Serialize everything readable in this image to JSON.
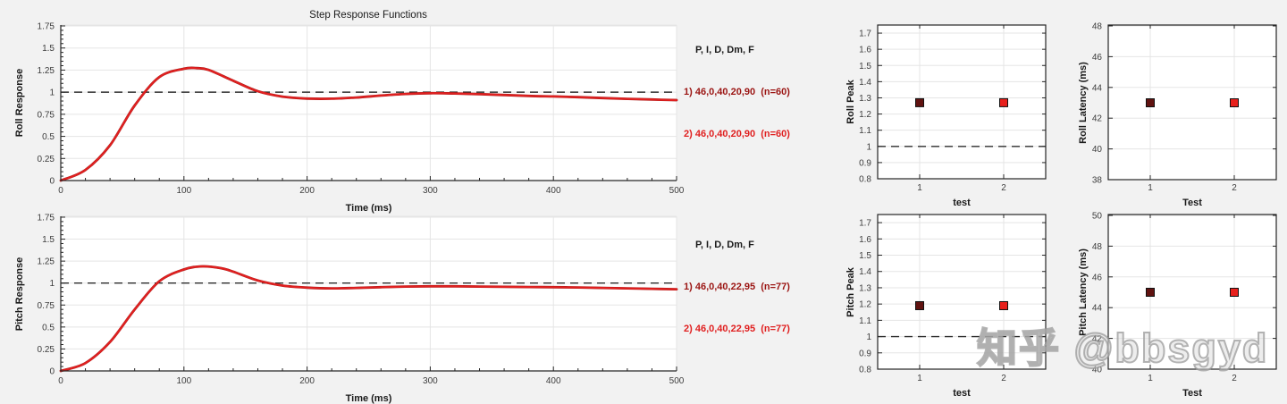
{
  "watermark": "知乎 @bbsgyd",
  "colors": {
    "background": "#f2f2f2",
    "plot_bg": "#ffffff",
    "grid": "#e5e5e5",
    "axis": "#262626",
    "tick_text": "#3d3d3d",
    "label_text": "#1a1a1a",
    "line_dark": "#9b1513",
    "line_bright": "#e02020",
    "marker_dark": "#601210",
    "marker_bright": "#e8201c",
    "marker_edge": "#111111",
    "ref_dash": "#2e2e2e"
  },
  "chart_data": [
    {
      "id": "roll",
      "type": "line",
      "title": "Step Response Functions",
      "xlabel": "Time (ms)",
      "ylabel": "Roll Response",
      "xlim": [
        0,
        500
      ],
      "ylim": [
        0,
        1.76
      ],
      "xtick_vals": [
        0,
        100,
        200,
        300,
        400,
        500
      ],
      "xtick_labels": [
        "0",
        "100",
        "200",
        "300",
        "400",
        "500"
      ],
      "ytick_vals": [
        0,
        0.25,
        0.5,
        0.75,
        1,
        1.25,
        1.5,
        1.75
      ],
      "ytick_labels": [
        "0",
        "0.25",
        "0.5",
        "0.75",
        "1",
        "1.25",
        "1.5",
        "1.75"
      ],
      "x_minor": 20,
      "y_minor": 0.05,
      "ref": 1,
      "grid": true,
      "legend_header": "P, I, D, Dm, F",
      "series": [
        {
          "name": "1) 46,0,40,20,90  (n=60)",
          "color": "line_dark",
          "width": 2.8,
          "points": [
            [
              0,
              0
            ],
            [
              20,
              0.12
            ],
            [
              40,
              0.4
            ],
            [
              60,
              0.85
            ],
            [
              80,
              1.17
            ],
            [
              100,
              1.265
            ],
            [
              110,
              1.272
            ],
            [
              120,
              1.252
            ],
            [
              140,
              1.13
            ],
            [
              160,
              1.01
            ],
            [
              180,
              0.95
            ],
            [
              200,
              0.928
            ],
            [
              220,
              0.927
            ],
            [
              240,
              0.94
            ],
            [
              260,
              0.962
            ],
            [
              280,
              0.98
            ],
            [
              300,
              0.988
            ],
            [
              320,
              0.985
            ],
            [
              340,
              0.978
            ],
            [
              360,
              0.968
            ],
            [
              380,
              0.958
            ],
            [
              400,
              0.952
            ],
            [
              420,
              0.944
            ],
            [
              440,
              0.934
            ],
            [
              460,
              0.925
            ],
            [
              480,
              0.917
            ],
            [
              500,
              0.91
            ]
          ]
        },
        {
          "name": "2) 46,0,40,20,90  (n=60)",
          "color": "line_bright",
          "width": 2.2,
          "points": [
            [
              0,
              0
            ],
            [
              20,
              0.12
            ],
            [
              40,
              0.4
            ],
            [
              60,
              0.85
            ],
            [
              80,
              1.17
            ],
            [
              100,
              1.265
            ],
            [
              110,
              1.272
            ],
            [
              120,
              1.252
            ],
            [
              140,
              1.13
            ],
            [
              160,
              1.01
            ],
            [
              180,
              0.95
            ],
            [
              200,
              0.928
            ],
            [
              220,
              0.927
            ],
            [
              240,
              0.94
            ],
            [
              260,
              0.962
            ],
            [
              280,
              0.98
            ],
            [
              300,
              0.988
            ],
            [
              320,
              0.985
            ],
            [
              340,
              0.978
            ],
            [
              360,
              0.968
            ],
            [
              380,
              0.958
            ],
            [
              400,
              0.952
            ],
            [
              420,
              0.944
            ],
            [
              440,
              0.934
            ],
            [
              460,
              0.925
            ],
            [
              480,
              0.917
            ],
            [
              500,
              0.91
            ]
          ]
        }
      ]
    },
    {
      "id": "pitch",
      "type": "line",
      "xlabel": "Time (ms)",
      "ylabel": "Pitch Response",
      "xlim": [
        0,
        500
      ],
      "ylim": [
        0,
        1.76
      ],
      "xtick_vals": [
        0,
        100,
        200,
        300,
        400,
        500
      ],
      "xtick_labels": [
        "0",
        "100",
        "200",
        "300",
        "400",
        "500"
      ],
      "ytick_vals": [
        0,
        0.25,
        0.5,
        0.75,
        1,
        1.25,
        1.5,
        1.75
      ],
      "ytick_labels": [
        "0",
        "0.25",
        "0.5",
        "0.75",
        "1",
        "1.25",
        "1.5",
        "1.75"
      ],
      "x_minor": 20,
      "y_minor": 0.05,
      "ref": 1,
      "grid": true,
      "legend_header": "P, I, D, Dm, F",
      "series": [
        {
          "name": "1) 46,0,40,22,95  (n=77)",
          "color": "line_dark",
          "width": 2.8,
          "points": [
            [
              0,
              0
            ],
            [
              20,
              0.09
            ],
            [
              40,
              0.33
            ],
            [
              60,
              0.7
            ],
            [
              80,
              1.02
            ],
            [
              100,
              1.155
            ],
            [
              115,
              1.19
            ],
            [
              130,
              1.17
            ],
            [
              140,
              1.13
            ],
            [
              160,
              1.03
            ],
            [
              180,
              0.972
            ],
            [
              200,
              0.948
            ],
            [
              220,
              0.94
            ],
            [
              240,
              0.945
            ],
            [
              260,
              0.953
            ],
            [
              280,
              0.96
            ],
            [
              300,
              0.963
            ],
            [
              320,
              0.963
            ],
            [
              340,
              0.96
            ],
            [
              360,
              0.957
            ],
            [
              380,
              0.955
            ],
            [
              400,
              0.953
            ],
            [
              420,
              0.95
            ],
            [
              440,
              0.945
            ],
            [
              460,
              0.94
            ],
            [
              480,
              0.935
            ],
            [
              500,
              0.93
            ]
          ]
        },
        {
          "name": "2) 46,0,40,22,95  (n=77)",
          "color": "line_bright",
          "width": 2.2,
          "points": [
            [
              0,
              0
            ],
            [
              20,
              0.09
            ],
            [
              40,
              0.33
            ],
            [
              60,
              0.7
            ],
            [
              80,
              1.02
            ],
            [
              100,
              1.155
            ],
            [
              115,
              1.19
            ],
            [
              130,
              1.17
            ],
            [
              140,
              1.13
            ],
            [
              160,
              1.03
            ],
            [
              180,
              0.972
            ],
            [
              200,
              0.948
            ],
            [
              220,
              0.94
            ],
            [
              240,
              0.945
            ],
            [
              260,
              0.953
            ],
            [
              280,
              0.96
            ],
            [
              300,
              0.963
            ],
            [
              320,
              0.963
            ],
            [
              340,
              0.96
            ],
            [
              360,
              0.957
            ],
            [
              380,
              0.955
            ],
            [
              400,
              0.953
            ],
            [
              420,
              0.95
            ],
            [
              440,
              0.945
            ],
            [
              460,
              0.94
            ],
            [
              480,
              0.935
            ],
            [
              500,
              0.93
            ]
          ]
        }
      ]
    },
    {
      "id": "roll_peak",
      "type": "scatter",
      "xlabel": "test",
      "ylabel": "Roll Peak",
      "xlim": [
        0.5,
        2.5
      ],
      "ylim": [
        0.8,
        1.75
      ],
      "xtick_vals": [
        1,
        2
      ],
      "xtick_labels": [
        "1",
        "2"
      ],
      "ytick_vals": [
        0.8,
        0.9,
        1,
        1.1,
        1.2,
        1.3,
        1.4,
        1.5,
        1.6,
        1.7
      ],
      "ytick_labels": [
        "0.8",
        "0.9",
        "1",
        "1.1",
        "1.2",
        "1.3",
        "1.4",
        "1.5",
        "1.6",
        "1.7"
      ],
      "ref": 1,
      "grid": true,
      "points": [
        {
          "x": 1,
          "y": 1.27,
          "color": "marker_dark"
        },
        {
          "x": 2,
          "y": 1.27,
          "color": "marker_bright"
        }
      ]
    },
    {
      "id": "roll_latency",
      "type": "scatter",
      "xlabel": "Test",
      "ylabel": "Roll Latency (ms)",
      "xlim": [
        0.5,
        2.5
      ],
      "ylim": [
        38,
        48
      ],
      "xtick_vals": [
        1,
        2
      ],
      "xtick_labels": [
        "1",
        "2"
      ],
      "ytick_vals": [
        38,
        40,
        42,
        44,
        46,
        48
      ],
      "ytick_labels": [
        "38",
        "40",
        "42",
        "44",
        "46",
        "48"
      ],
      "ref": null,
      "grid": true,
      "points": [
        {
          "x": 1,
          "y": 43,
          "color": "marker_dark"
        },
        {
          "x": 2,
          "y": 43,
          "color": "marker_bright"
        }
      ]
    },
    {
      "id": "pitch_peak",
      "type": "scatter",
      "xlabel": "test",
      "ylabel": "Pitch Peak",
      "xlim": [
        0.5,
        2.5
      ],
      "ylim": [
        0.8,
        1.75
      ],
      "xtick_vals": [
        1,
        2
      ],
      "xtick_labels": [
        "1",
        "2"
      ],
      "ytick_vals": [
        0.8,
        0.9,
        1,
        1.1,
        1.2,
        1.3,
        1.4,
        1.5,
        1.6,
        1.7
      ],
      "ytick_labels": [
        "0.8",
        "0.9",
        "1",
        "1.1",
        "1.2",
        "1.3",
        "1.4",
        "1.5",
        "1.6",
        "1.7"
      ],
      "ref": 1,
      "grid": true,
      "points": [
        {
          "x": 1,
          "y": 1.19,
          "color": "marker_dark"
        },
        {
          "x": 2,
          "y": 1.19,
          "color": "marker_bright"
        }
      ]
    },
    {
      "id": "pitch_latency",
      "type": "scatter",
      "xlabel": "Test",
      "ylabel": "Pitch Latency (ms)",
      "xlim": [
        0.5,
        2.5
      ],
      "ylim": [
        40,
        50
      ],
      "xtick_vals": [
        1,
        2
      ],
      "xtick_labels": [
        "1",
        "2"
      ],
      "ytick_vals": [
        40,
        42,
        44,
        46,
        48,
        50
      ],
      "ytick_labels": [
        "40",
        "42",
        "44",
        "46",
        "48",
        "50"
      ],
      "ref": null,
      "grid": true,
      "points": [
        {
          "x": 1,
          "y": 45,
          "color": "marker_dark"
        },
        {
          "x": 2,
          "y": 45,
          "color": "marker_bright"
        }
      ]
    }
  ]
}
